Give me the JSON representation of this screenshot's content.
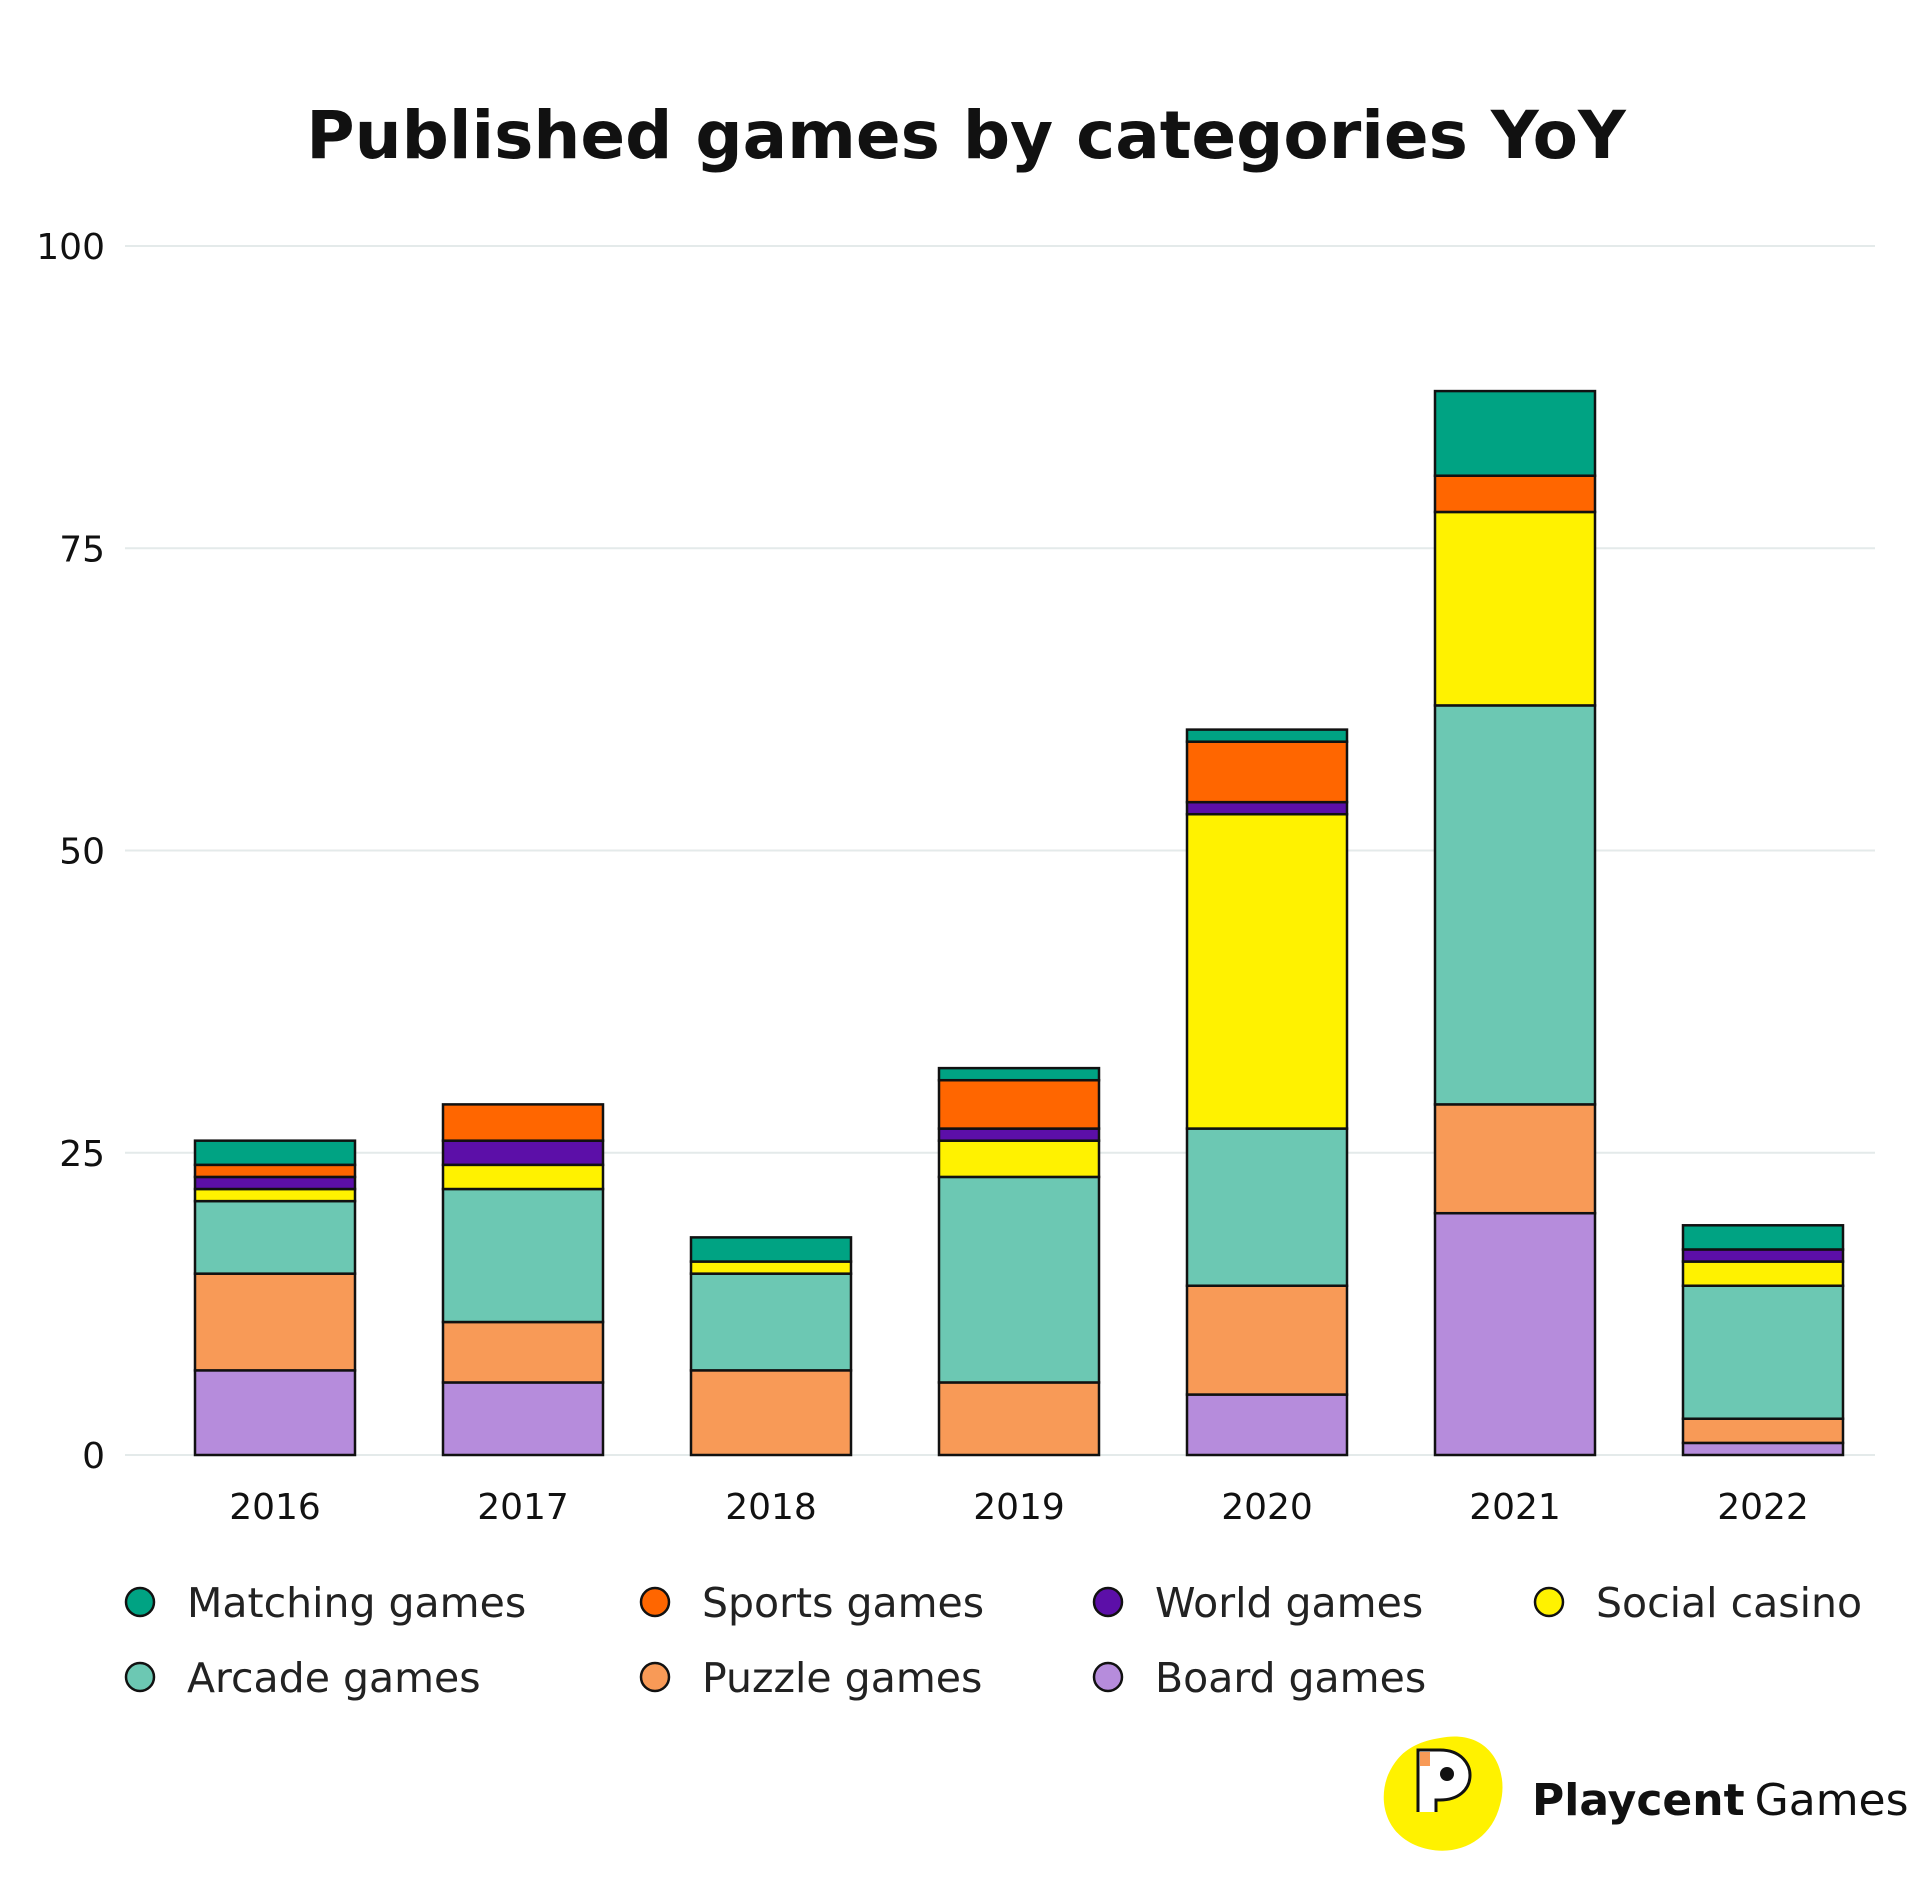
{
  "chart_data": {
    "type": "bar",
    "stacked": true,
    "title": "Published games by categories YoY",
    "xlabel": "",
    "ylabel": "",
    "ylim": [
      0,
      100
    ],
    "yticks": [
      0,
      25,
      50,
      75,
      100
    ],
    "grid": true,
    "legend_position": "bottom",
    "categories": [
      "2016",
      "2017",
      "2018",
      "2019",
      "2020",
      "2021",
      "2022"
    ],
    "series": [
      {
        "name": "Board games",
        "color": "#b68cdc",
        "values": [
          7,
          6,
          0,
          0,
          5,
          20,
          1
        ]
      },
      {
        "name": "Puzzle games",
        "color": "#f89a57",
        "values": [
          8,
          5,
          7,
          6,
          9,
          9,
          2
        ]
      },
      {
        "name": "Arcade games",
        "color": "#6cc8b3",
        "values": [
          6,
          11,
          8,
          17,
          13,
          33,
          11
        ]
      },
      {
        "name": "Social casino",
        "color": "#fff200",
        "values": [
          1,
          2,
          1,
          3,
          26,
          16,
          2
        ]
      },
      {
        "name": "World games",
        "color": "#5c0fa8",
        "values": [
          1,
          2,
          0,
          1,
          1,
          0,
          1
        ]
      },
      {
        "name": "Sports games",
        "color": "#ff6600",
        "values": [
          1,
          3,
          0,
          4,
          5,
          3,
          0
        ]
      },
      {
        "name": "Matching games",
        "color": "#00a383",
        "values": [
          2,
          0,
          2,
          1,
          1,
          7,
          2
        ]
      }
    ],
    "legend_order": [
      "Matching games",
      "Sports games",
      "World games",
      "Social casino",
      "Arcade games",
      "Puzzle games",
      "Board games"
    ]
  },
  "branding": {
    "logo_text_bold": "Playcent",
    "logo_text_regular": "Games",
    "logo_color": "#fff200"
  }
}
